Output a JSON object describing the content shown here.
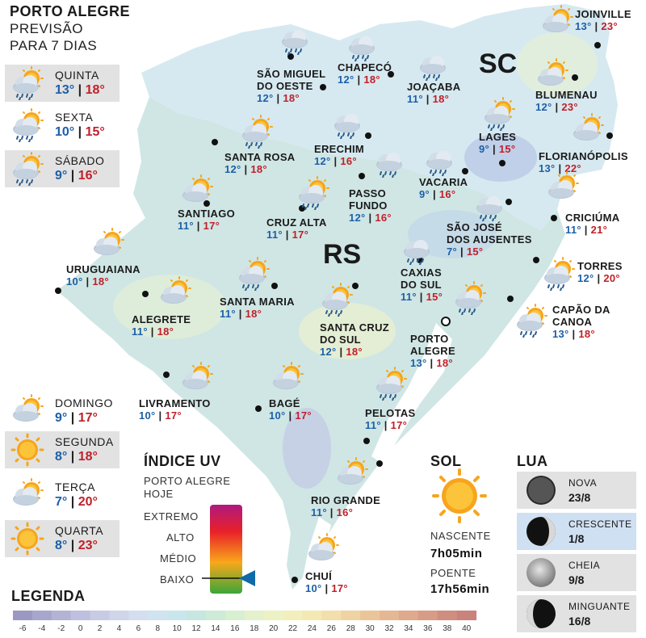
{
  "header": {
    "title": "PORTO ALEGRE",
    "sub1": "PREVISÃO",
    "sub2": "PARA 7 DIAS"
  },
  "forecast_days": [
    {
      "day": "QUINTA",
      "min": "13°",
      "max": "18°",
      "icon": "sun-cloud-rain-icon"
    },
    {
      "day": "SEXTA",
      "min": "10°",
      "max": "15°",
      "icon": "sun-cloud-rain-icon"
    },
    {
      "day": "SÁBADO",
      "min": "9°",
      "max": "16°",
      "icon": "sun-cloud-rain-icon"
    },
    {
      "day": "DOMINGO",
      "min": "9°",
      "max": "17°",
      "icon": "sun-cloud-icon"
    },
    {
      "day": "SEGUNDA",
      "min": "8°",
      "max": "18°",
      "icon": "sun-icon"
    },
    {
      "day": "TERÇA",
      "min": "7°",
      "max": "20°",
      "icon": "sun-cloud-icon"
    },
    {
      "day": "QUARTA",
      "min": "8°",
      "max": "23°",
      "icon": "sun-icon"
    }
  ],
  "states": {
    "sc": "SC",
    "rs": "RS"
  },
  "cities": [
    {
      "name1": "JOINVILLE",
      "name2": "",
      "min": "13°",
      "max": "23°",
      "icon": "sun-cloud-icon"
    },
    {
      "name1": "SÃO MIGUEL",
      "name2": "DO OESTE",
      "min": "12°",
      "max": "18°",
      "icon": "cloud-rain-icon"
    },
    {
      "name1": "CHAPECÓ",
      "name2": "",
      "min": "12°",
      "max": "18°",
      "icon": "cloud-rain-icon"
    },
    {
      "name1": "JOAÇABA",
      "name2": "",
      "min": "11°",
      "max": "18°",
      "icon": "cloud-rain-icon"
    },
    {
      "name1": "BLUMENAU",
      "name2": "",
      "min": "12°",
      "max": "23°",
      "icon": "sun-cloud-icon"
    },
    {
      "name1": "LAGES",
      "name2": "",
      "min": "9°",
      "max": "15°",
      "icon": "sun-cloud-rain-icon"
    },
    {
      "name1": "FLORIANÓPOLIS",
      "name2": "",
      "min": "13°",
      "max": "22°",
      "icon": "sun-cloud-icon"
    },
    {
      "name1": "SANTA ROSA",
      "name2": "",
      "min": "12°",
      "max": "18°",
      "icon": "sun-cloud-rain-icon"
    },
    {
      "name1": "ERECHIM",
      "name2": "",
      "min": "12°",
      "max": "16°",
      "icon": "cloud-rain-icon"
    },
    {
      "name1": "VACARIA",
      "name2": "",
      "min": "9°",
      "max": "16°",
      "icon": "cloud-rain-icon"
    },
    {
      "name1": "PASSO",
      "name2": "FUNDO",
      "min": "12°",
      "max": "16°",
      "icon": "cloud-rain-icon"
    },
    {
      "name1": "SANTIAGO",
      "name2": "",
      "min": "11°",
      "max": "17°",
      "icon": "sun-cloud-icon"
    },
    {
      "name1": "CRUZ ALTA",
      "name2": "",
      "min": "11°",
      "max": "17°",
      "icon": "sun-cloud-rain-icon"
    },
    {
      "name1": "SÃO JOSÉ",
      "name2": "DOS AUSENTES",
      "min": "7°",
      "max": "15°",
      "icon": "cloud-rain-icon"
    },
    {
      "name1": "CRICIÚMA",
      "name2": "",
      "min": "11°",
      "max": "21°",
      "icon": "sun-cloud-icon"
    },
    {
      "name1": "URUGUAIANA",
      "name2": "",
      "min": "10°",
      "max": "18°",
      "icon": "sun-cloud-icon"
    },
    {
      "name1": "CAXIAS",
      "name2": "DO SUL",
      "min": "11°",
      "max": "15°",
      "icon": "cloud-rain-icon"
    },
    {
      "name1": "TORRES",
      "name2": "",
      "min": "12°",
      "max": "20°",
      "icon": "sun-cloud-rain-icon"
    },
    {
      "name1": "SANTA MARIA",
      "name2": "",
      "min": "11°",
      "max": "18°",
      "icon": "sun-cloud-rain-icon"
    },
    {
      "name1": "ALEGRETE",
      "name2": "",
      "min": "11°",
      "max": "18°",
      "icon": "sun-cloud-icon"
    },
    {
      "name1": "SANTA CRUZ",
      "name2": "DO SUL",
      "min": "12°",
      "max": "18°",
      "icon": "sun-cloud-rain-icon"
    },
    {
      "name1": "PORTO",
      "name2": "ALEGRE",
      "min": "13°",
      "max": "18°",
      "icon": "sun-cloud-rain-icon"
    },
    {
      "name1": "CAPÃO DA",
      "name2": "CANOA",
      "min": "13°",
      "max": "18°",
      "icon": "sun-cloud-rain-icon"
    },
    {
      "name1": "LIVRAMENTO",
      "name2": "",
      "min": "10°",
      "max": "17°",
      "icon": "sun-cloud-icon"
    },
    {
      "name1": "BAGÉ",
      "name2": "",
      "min": "10°",
      "max": "17°",
      "icon": "sun-cloud-icon"
    },
    {
      "name1": "PELOTAS",
      "name2": "",
      "min": "11°",
      "max": "17°",
      "icon": "sun-cloud-rain-icon"
    },
    {
      "name1": "RIO GRANDE",
      "name2": "",
      "min": "11°",
      "max": "16°",
      "icon": "sun-cloud-icon"
    },
    {
      "name1": "CHUÍ",
      "name2": "",
      "min": "10°",
      "max": "17°",
      "icon": "sun-cloud-icon"
    }
  ],
  "uv": {
    "title": "ÍNDICE UV",
    "sub1": "PORTO ALEGRE",
    "sub2": "HOJE",
    "levels": [
      "EXTREMO",
      "ALTO",
      "MÉDIO",
      "BAIXO"
    ],
    "current": "BAIXO"
  },
  "sun": {
    "title": "SOL",
    "rise_label": "NASCENTE",
    "rise": "7h05min",
    "set_label": "POENTE",
    "set": "17h56min"
  },
  "moon": {
    "title": "LUA",
    "phases": [
      {
        "name": "NOVA",
        "date": "23/8"
      },
      {
        "name": "CRESCENTE",
        "date": "1/8",
        "current": true
      },
      {
        "name": "CHEIA",
        "date": "9/8"
      },
      {
        "name": "MINGUANTE",
        "date": "16/8"
      }
    ]
  },
  "legend": {
    "title": "LEGENDA",
    "scale": [
      "-6",
      "-4",
      "-2",
      "0",
      "2",
      "4",
      "6",
      "8",
      "10",
      "12",
      "14",
      "16",
      "18",
      "20",
      "22",
      "24",
      "26",
      "28",
      "30",
      "32",
      "34",
      "36",
      "38",
      "40"
    ],
    "colors": [
      "#9b99c4",
      "#a7a6cd",
      "#b3b3d6",
      "#bfc0df",
      "#c7cbe4",
      "#cfd6ea",
      "#d3dfef",
      "#cfe3f0",
      "#c9e6ec",
      "#c6e6df",
      "#cdebd6",
      "#d8efd1",
      "#e4f1cc",
      "#edf2c5",
      "#f2efbc",
      "#f4e8b3",
      "#f3dfab",
      "#f0d3a2",
      "#ebc59a",
      "#e5b792",
      "#dfa98b",
      "#d89b85",
      "#d08e80",
      "#c9837c"
    ]
  },
  "colors": {
    "tmin": "#1d5fa8",
    "tmax": "#c0202a",
    "map_base": "#d4e8ec"
  }
}
